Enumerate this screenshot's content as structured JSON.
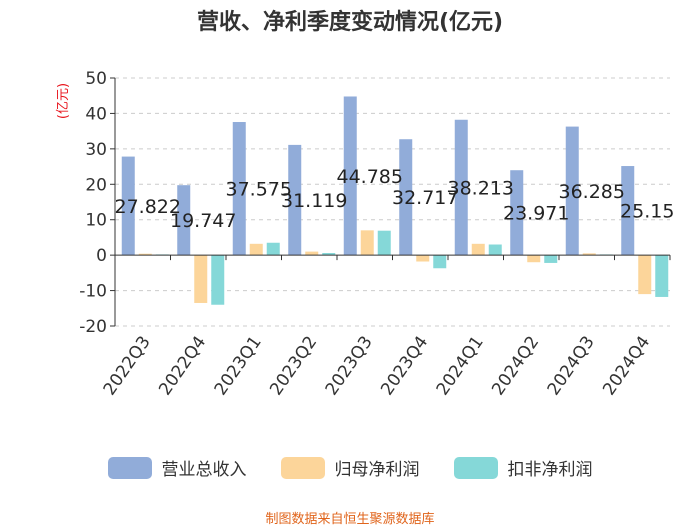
{
  "chart_data": {
    "type": "bar",
    "title": "营收、净利季度变动情况(亿元)",
    "ylabel": "(亿元)",
    "xlabel": "",
    "ylim": [
      -20,
      50
    ],
    "yticks": [
      50,
      40,
      30,
      20,
      10,
      0,
      -10,
      -20
    ],
    "categories": [
      "2022Q3",
      "2022Q4",
      "2023Q1",
      "2023Q2",
      "2023Q3",
      "2023Q4",
      "2024Q1",
      "2024Q2",
      "2024Q3",
      "2024Q4"
    ],
    "series": [
      {
        "name": "营业总收入",
        "color": "#91acd9",
        "values": [
          27.822,
          19.747,
          37.575,
          31.119,
          44.785,
          32.717,
          38.213,
          23.971,
          36.285,
          25.15
        ],
        "labels": [
          "27.822",
          "19.747",
          "37.575",
          "31.119",
          "44.785",
          "32.717",
          "38.213",
          "23.971",
          "36.285",
          "25.15"
        ]
      },
      {
        "name": "归母净利润",
        "color": "#fcd59a",
        "values": [
          0.4,
          -13.5,
          3.2,
          1.0,
          7.0,
          -1.8,
          3.2,
          -2.0,
          0.5,
          -11.0
        ]
      },
      {
        "name": "扣非净利润",
        "color": "#85d8d8",
        "values": [
          0.2,
          -14.0,
          3.5,
          0.6,
          6.9,
          -3.7,
          3.0,
          -2.2,
          0.2,
          -11.8
        ]
      }
    ],
    "grid": true,
    "legend": "bottom"
  },
  "colors": {
    "ylabel": "#e8141c",
    "source": "#e0641b",
    "axis": "#333333"
  },
  "source_note": "制图数据来自恒生聚源数据库"
}
